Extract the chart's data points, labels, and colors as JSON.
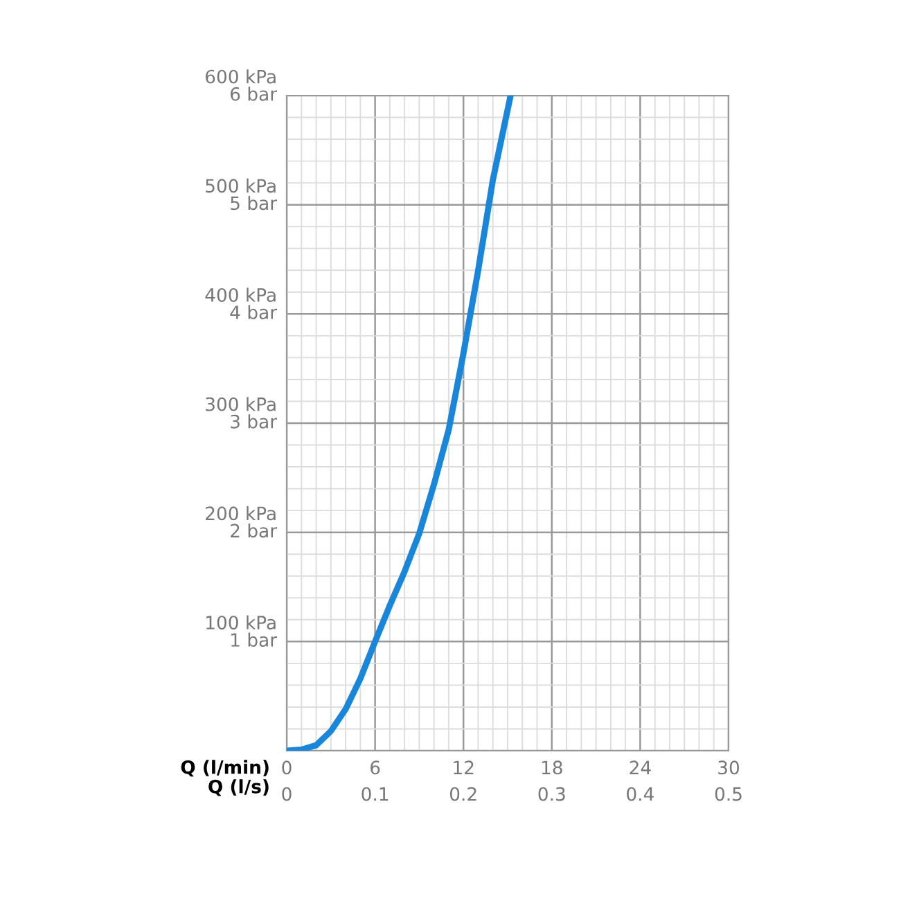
{
  "chart_data": {
    "type": "line",
    "x": [
      0,
      1,
      2,
      3,
      4,
      5,
      6,
      7,
      8,
      9,
      10,
      11,
      12,
      13,
      14,
      15.2
    ],
    "series": [
      {
        "color": "#1a86d9",
        "values": [
          0,
          1,
          5,
          18,
          38,
          66,
          100,
          133,
          164,
          199,
          244,
          294,
          364,
          440,
          523,
          600
        ]
      }
    ],
    "xlabel": "Q (l/min)",
    "x2label": "Q (l/s)",
    "xlim": [
      0,
      30
    ],
    "xticks": [
      0,
      6,
      12,
      18,
      24,
      30
    ],
    "x2lim": [
      0,
      0.5
    ],
    "x2ticks": [
      0,
      0.1,
      0.2,
      0.3,
      0.4,
      0.5
    ],
    "ylim": [
      0,
      600
    ],
    "yticks": [
      {
        "value": 0,
        "label": null
      },
      {
        "value": 100,
        "label": "100 kPa"
      },
      {
        "value": 200,
        "label": "200 kPa"
      },
      {
        "value": 300,
        "label": "300 kPa"
      },
      {
        "value": 400,
        "label": "400 kPa"
      },
      {
        "value": 500,
        "label": "500 kPa"
      },
      {
        "value": 600,
        "label": "600 kPa"
      }
    ],
    "y2lim": [
      0,
      6
    ],
    "y2ticks": [
      {
        "value": 1,
        "label": "1 bar"
      },
      {
        "value": 2,
        "label": "2 bar"
      },
      {
        "value": 3,
        "label": "3 bar"
      },
      {
        "value": 4,
        "label": "4 bar"
      },
      {
        "value": 5,
        "label": "5 bar"
      },
      {
        "value": 6,
        "label": "6 bar"
      }
    ],
    "grid": true,
    "marker": "none",
    "line_style": "solid"
  }
}
